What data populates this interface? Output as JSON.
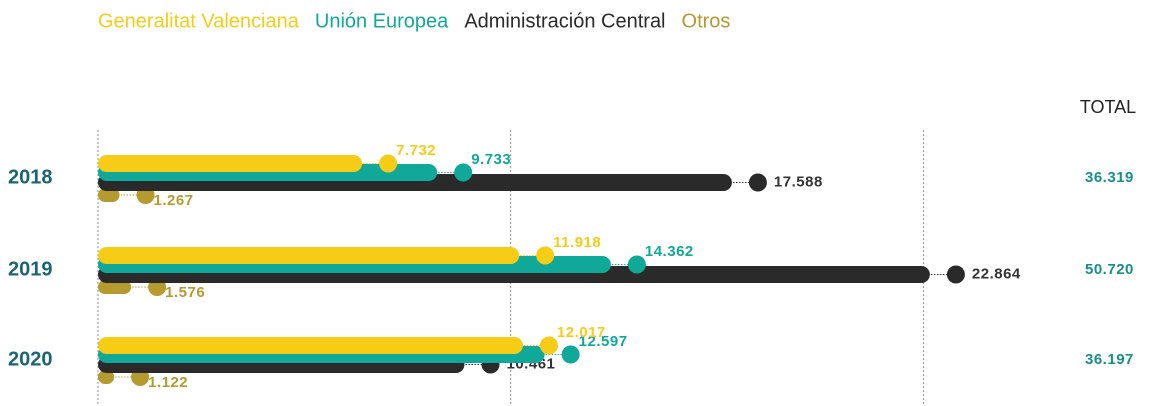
{
  "chart_data": {
    "type": "bar",
    "orientation": "horizontal",
    "categories": [
      "2018",
      "2019",
      "2020"
    ],
    "series": [
      {
        "name": "Generalitat Valenciana",
        "color": "#f7cc16",
        "values": [
          7732,
          11918,
          12017
        ],
        "value_labels": [
          "7.732",
          "11.918",
          "12.017"
        ]
      },
      {
        "name": "Unión Europea",
        "color": "#10a999",
        "values": [
          9733,
          14362,
          12597
        ],
        "value_labels": [
          "9.733",
          "14.362",
          "12.597"
        ]
      },
      {
        "name": "Administración Central",
        "color": "#2a2a2a",
        "values": [
          17588,
          22864,
          10461
        ],
        "value_labels": [
          "17.588",
          "22.864",
          "10.461"
        ]
      },
      {
        "name": "Otros",
        "color": "#b59a2f",
        "values": [
          1267,
          1576,
          1122
        ],
        "value_labels": [
          "1.267",
          "1.576",
          "1.122"
        ]
      }
    ],
    "totals": {
      "label": "TOTAL",
      "values": [
        36319,
        50720,
        36197
      ],
      "value_labels": [
        "36.319",
        "50.720",
        "36.197"
      ],
      "color": "#178f8a"
    },
    "xlim": [
      0,
      23000
    ],
    "xticks": [
      0,
      11000,
      22000
    ],
    "grid": true
  }
}
